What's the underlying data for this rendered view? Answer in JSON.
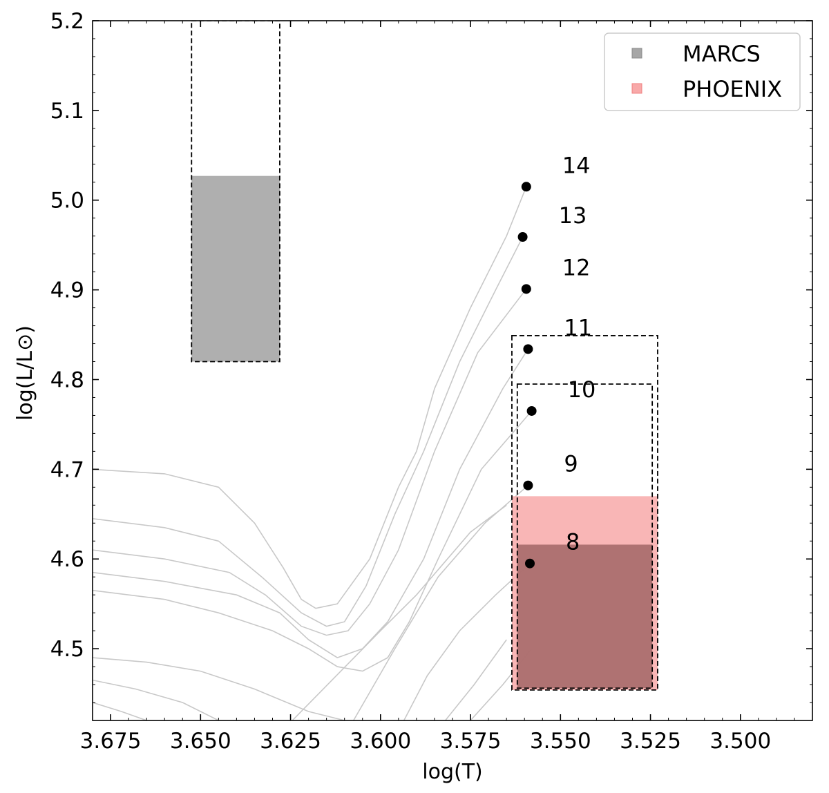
{
  "chart_data": {
    "type": "scatter",
    "xlabel": "log(T)",
    "ylabel": "log(L/L⊙)",
    "xlim": [
      3.68,
      3.48
    ],
    "ylim": [
      4.42,
      5.2
    ],
    "x_ticks": [
      {
        "value": 3.675,
        "label": "3.675"
      },
      {
        "value": 3.65,
        "label": "3.650"
      },
      {
        "value": 3.625,
        "label": "3.625"
      },
      {
        "value": 3.6,
        "label": "3.600"
      },
      {
        "value": 3.575,
        "label": "3.575"
      },
      {
        "value": 3.55,
        "label": "3.550"
      },
      {
        "value": 3.525,
        "label": "3.525"
      },
      {
        "value": 3.5,
        "label": "3.500"
      }
    ],
    "y_ticks": [
      {
        "value": 4.5,
        "label": "4.5"
      },
      {
        "value": 4.6,
        "label": "4.6"
      },
      {
        "value": 4.7,
        "label": "4.7"
      },
      {
        "value": 4.8,
        "label": "4.8"
      },
      {
        "value": 4.9,
        "label": "4.9"
      },
      {
        "value": 5.0,
        "label": "5.0"
      },
      {
        "value": 5.1,
        "label": "5.1"
      },
      {
        "value": 5.2,
        "label": "5.2"
      }
    ],
    "legend": {
      "position": "top-right",
      "entries": [
        {
          "label": "MARCS",
          "color": "#a6a6a6"
        },
        {
          "label": "PHOENIX",
          "color": "#f8a9a9"
        }
      ]
    },
    "points": [
      {
        "label": "8",
        "x": 3.5585,
        "y": 4.595
      },
      {
        "label": "9",
        "x": 3.559,
        "y": 4.682
      },
      {
        "label": "10",
        "x": 3.558,
        "y": 4.765
      },
      {
        "label": "11",
        "x": 3.559,
        "y": 4.834
      },
      {
        "label": "12",
        "x": 3.5595,
        "y": 4.901
      },
      {
        "label": "13",
        "x": 3.5605,
        "y": 4.959
      },
      {
        "label": "14",
        "x": 3.5595,
        "y": 5.015
      }
    ],
    "regions": [
      {
        "name": "marcs-box-upper",
        "x": [
          3.6525,
          3.628
        ],
        "y": [
          4.82,
          5.2
        ],
        "fill_y": [
          4.82,
          5.027
        ],
        "fill": "#a6a6a6",
        "style": "dashed"
      },
      {
        "name": "outer-box-lower",
        "x": [
          3.5635,
          3.523
        ],
        "y": [
          4.454,
          4.849
        ],
        "fill_y": [
          4.454,
          4.67
        ],
        "fill": "#f8a9a9",
        "style": "dashed"
      },
      {
        "name": "inner-box-lower",
        "x": [
          3.562,
          3.5245
        ],
        "y": [
          4.456,
          4.795
        ],
        "fill_y": [
          4.456,
          4.616
        ],
        "fill": "#a66a6a",
        "style": "dashed"
      }
    ],
    "tracks": [
      [
        [
          3.68,
          4.7
        ],
        [
          3.66,
          4.695
        ],
        [
          3.645,
          4.68
        ],
        [
          3.635,
          4.64
        ],
        [
          3.627,
          4.59
        ],
        [
          3.622,
          4.555
        ],
        [
          3.618,
          4.545
        ],
        [
          3.612,
          4.55
        ],
        [
          3.603,
          4.6
        ],
        [
          3.595,
          4.68
        ],
        [
          3.59,
          4.72
        ],
        [
          3.585,
          4.79
        ],
        [
          3.575,
          4.88
        ],
        [
          3.565,
          4.96
        ],
        [
          3.5595,
          5.015
        ]
      ],
      [
        [
          3.68,
          4.645
        ],
        [
          3.66,
          4.635
        ],
        [
          3.645,
          4.62
        ],
        [
          3.633,
          4.58
        ],
        [
          3.622,
          4.54
        ],
        [
          3.615,
          4.525
        ],
        [
          3.61,
          4.53
        ],
        [
          3.604,
          4.57
        ],
        [
          3.596,
          4.65
        ],
        [
          3.588,
          4.72
        ],
        [
          3.578,
          4.82
        ],
        [
          3.568,
          4.9
        ],
        [
          3.5605,
          4.959
        ]
      ],
      [
        [
          3.68,
          4.61
        ],
        [
          3.66,
          4.6
        ],
        [
          3.642,
          4.585
        ],
        [
          3.632,
          4.56
        ],
        [
          3.622,
          4.525
        ],
        [
          3.615,
          4.515
        ],
        [
          3.609,
          4.52
        ],
        [
          3.603,
          4.55
        ],
        [
          3.595,
          4.61
        ],
        [
          3.585,
          4.72
        ],
        [
          3.573,
          4.83
        ],
        [
          3.5595,
          4.901
        ]
      ],
      [
        [
          3.68,
          4.585
        ],
        [
          3.66,
          4.575
        ],
        [
          3.64,
          4.56
        ],
        [
          3.628,
          4.54
        ],
        [
          3.62,
          4.51
        ],
        [
          3.612,
          4.49
        ],
        [
          3.605,
          4.5
        ],
        [
          3.598,
          4.53
        ],
        [
          3.588,
          4.6
        ],
        [
          3.578,
          4.7
        ],
        [
          3.566,
          4.79
        ],
        [
          3.559,
          4.834
        ]
      ],
      [
        [
          3.68,
          4.565
        ],
        [
          3.66,
          4.555
        ],
        [
          3.645,
          4.54
        ],
        [
          3.63,
          4.52
        ],
        [
          3.62,
          4.5
        ],
        [
          3.612,
          4.48
        ],
        [
          3.605,
          4.475
        ],
        [
          3.598,
          4.49
        ],
        [
          3.592,
          4.53
        ],
        [
          3.584,
          4.6
        ],
        [
          3.572,
          4.7
        ],
        [
          3.558,
          4.765
        ]
      ],
      [
        [
          3.68,
          4.49
        ],
        [
          3.665,
          4.485
        ],
        [
          3.65,
          4.475
        ],
        [
          3.635,
          4.455
        ],
        [
          3.62,
          4.43
        ],
        [
          3.61,
          4.42
        ]
      ],
      [
        [
          3.68,
          4.465
        ],
        [
          3.668,
          4.455
        ],
        [
          3.655,
          4.44
        ],
        [
          3.645,
          4.42
        ]
      ],
      [
        [
          3.68,
          4.44
        ],
        [
          3.672,
          4.43
        ],
        [
          3.665,
          4.42
        ]
      ],
      [
        [
          3.6075,
          4.42
        ],
        [
          3.596,
          4.5
        ],
        [
          3.584,
          4.58
        ],
        [
          3.571,
          4.64
        ],
        [
          3.559,
          4.682
        ]
      ],
      [
        [
          3.5935,
          4.42
        ],
        [
          3.587,
          4.47
        ],
        [
          3.578,
          4.52
        ],
        [
          3.568,
          4.56
        ],
        [
          3.5585,
          4.595
        ]
      ],
      [
        [
          3.6245,
          4.42
        ],
        [
          3.6,
          4.52
        ],
        [
          3.59,
          4.56
        ],
        [
          3.575,
          4.63
        ],
        [
          3.565,
          4.66
        ]
      ],
      [
        [
          3.582,
          4.42
        ],
        [
          3.574,
          4.46
        ],
        [
          3.565,
          4.51
        ]
      ],
      [
        [
          3.575,
          4.42
        ],
        [
          3.566,
          4.46
        ],
        [
          3.558,
          4.5
        ]
      ]
    ]
  }
}
